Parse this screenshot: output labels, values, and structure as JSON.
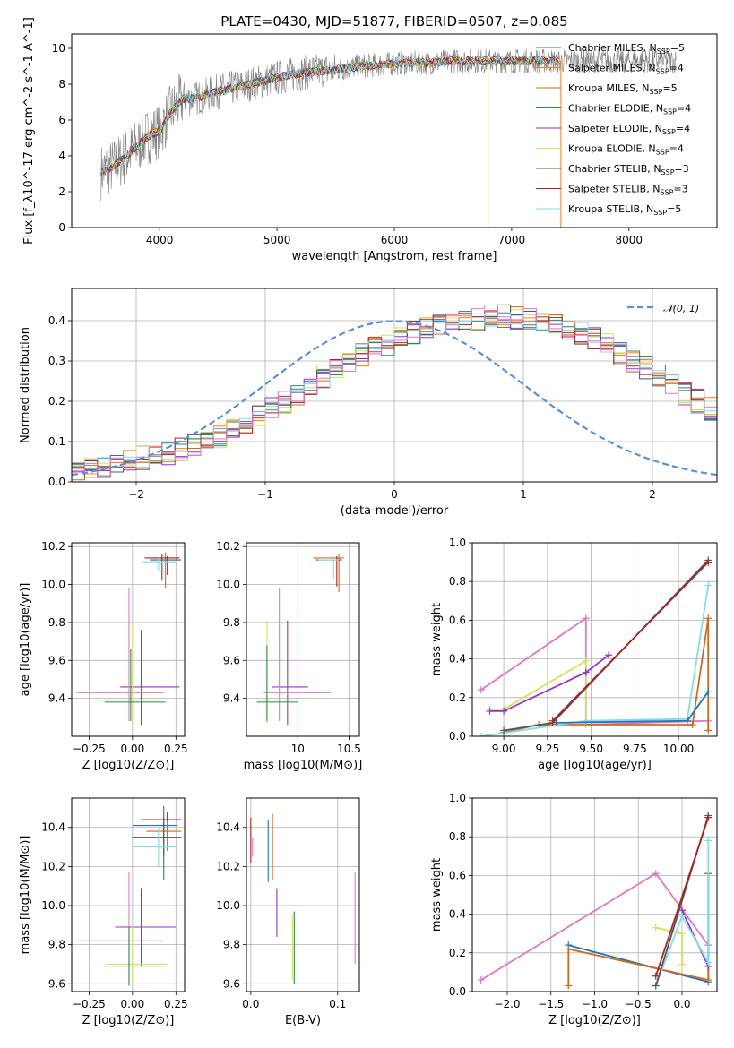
{
  "figure_title": "PLATE=0430, MJD=51877, FIBERID=0507, z=0.085",
  "chart_data": [
    {
      "id": "spectrum",
      "type": "line",
      "xlabel": "wavelength [Angstrom, rest frame]",
      "ylabel": "Flux [f_λ10^-17 erg cm^-2 s^-1 A^-1]",
      "xlim": [
        3250,
        8750
      ],
      "ylim": [
        0,
        10.8
      ],
      "xticks": [
        4000,
        5000,
        6000,
        7000,
        8000
      ],
      "yticks": [
        0,
        2,
        4,
        6,
        8,
        10
      ],
      "grid": false,
      "legend_position": "top-right",
      "data_color": "#808080",
      "model_continuum": {
        "x": [
          3500,
          3600,
          3700,
          3800,
          3900,
          4000,
          4100,
          4200,
          4300,
          4500,
          4700,
          4900,
          5100,
          5300,
          5500,
          5700,
          5900,
          6100,
          6300,
          6500,
          6700,
          6900,
          7100,
          7300,
          7400
        ],
        "y": [
          3.1,
          3.4,
          3.9,
          4.5,
          5.1,
          5.4,
          6.5,
          7.2,
          7.2,
          7.6,
          7.9,
          8.2,
          8.5,
          8.7,
          8.8,
          9.0,
          9.1,
          9.2,
          9.2,
          9.3,
          9.3,
          9.3,
          9.3,
          9.3,
          9.3
        ]
      },
      "series": [
        {
          "name": "Chabrier MILES, N_SSP=5",
          "color": "#1f77b4"
        },
        {
          "name": "Salpeter MILES, N_SSP=4",
          "color": "#ff7f0e"
        },
        {
          "name": "Kroupa MILES, N_SSP=5",
          "color": "#d2691e"
        },
        {
          "name": "Chabrier ELODIE, N_SSP=4",
          "color": "#2e8b57"
        },
        {
          "name": "Salpeter ELODIE, N_SSP=4",
          "color": "#9932cc"
        },
        {
          "name": "Kroupa ELODIE, N_SSP=4",
          "color": "#d4e157"
        },
        {
          "name": "Chabrier STELIB, N_SSP=3",
          "color": "#555555"
        },
        {
          "name": "Salpeter STELIB, N_SSP=3",
          "color": "#b22222"
        },
        {
          "name": "Kroupa STELIB, N_SSP=5",
          "color": "#80deea"
        }
      ]
    },
    {
      "id": "residual-histogram",
      "type": "line",
      "xlabel": "(data-model)/error",
      "ylabel": "Normed distribution",
      "xlim": [
        -2.5,
        2.5
      ],
      "ylim": [
        0,
        0.48
      ],
      "xticks": [
        -2,
        -1,
        0,
        1,
        2
      ],
      "yticks": [
        0.0,
        0.1,
        0.2,
        0.3,
        0.4
      ],
      "grid": true,
      "legend_position": "top-right",
      "legend": "𝒩(0, 1)",
      "gaussian_color": "#5b8fd6",
      "bin_width": 0.1,
      "bin_start": -2.5,
      "base_values": [
        0.03,
        0.035,
        0.04,
        0.045,
        0.05,
        0.06,
        0.065,
        0.07,
        0.08,
        0.09,
        0.1,
        0.11,
        0.125,
        0.14,
        0.16,
        0.18,
        0.2,
        0.22,
        0.24,
        0.26,
        0.28,
        0.3,
        0.315,
        0.33,
        0.34,
        0.355,
        0.37,
        0.38,
        0.39,
        0.395,
        0.4,
        0.405,
        0.41,
        0.41,
        0.405,
        0.4,
        0.395,
        0.39,
        0.38,
        0.37,
        0.36,
        0.34,
        0.32,
        0.3,
        0.28,
        0.26,
        0.24,
        0.22,
        0.2,
        0.18,
        0.16,
        0.14,
        0.125,
        0.11,
        0.1,
        0.09,
        0.08,
        0.07,
        0.06,
        0.05,
        0.045,
        0.04,
        0.035,
        0.03,
        0.03,
        0.028,
        0.026,
        0.024,
        0.022,
        0.02,
        0.02
      ],
      "series_colors": [
        "#1f77b4",
        "#ff7f0e",
        "#d2691e",
        "#2e8b57",
        "#9932cc",
        "#d4e157",
        "#555555",
        "#b22222",
        "#80deea",
        "#e377c2"
      ]
    },
    {
      "id": "age-vs-Z",
      "type": "scatter",
      "xlabel": "Z [log10(Z/Z⊙)]",
      "ylabel": "age [log10(age/yr)]",
      "xlim": [
        -0.35,
        0.3
      ],
      "ylim": [
        9.2,
        10.22
      ],
      "xticks": [
        -0.25,
        0.0,
        0.25
      ],
      "xtick_labels": [
        "−0.25",
        "0.00",
        "0.25"
      ],
      "yticks": [
        9.4,
        9.6,
        9.8,
        10.0,
        10.2
      ],
      "grid": true,
      "errorbars": [
        {
          "x": 0.19,
          "y": 10.14,
          "xerr": [
            0.08,
            0.08
          ],
          "yerr": [
            0.16,
            0.03
          ],
          "color": "#d2691e"
        },
        {
          "x": 0.17,
          "y": 10.14,
          "xerr": [
            0.1,
            0.1
          ],
          "yerr": [
            0.12,
            0.02
          ],
          "color": "#b22222"
        },
        {
          "x": 0.2,
          "y": 10.13,
          "xerr": [
            0.1,
            0.08
          ],
          "yerr": [
            0.08,
            0.02
          ],
          "color": "#555555"
        },
        {
          "x": 0.15,
          "y": 10.12,
          "xerr": [
            0.09,
            0.1
          ],
          "yerr": [
            0.05,
            0.02
          ],
          "color": "#80deea"
        },
        {
          "x": 0.05,
          "y": 9.46,
          "xerr": [
            0.12,
            0.22
          ],
          "yerr": [
            0.2,
            0.3
          ],
          "color": "#9932cc"
        },
        {
          "x": -0.02,
          "y": 9.43,
          "xerr": [
            0.3,
            0.2
          ],
          "yerr": [
            0.15,
            0.55
          ],
          "color": "#e377c2"
        },
        {
          "x": 0.0,
          "y": 9.39,
          "xerr": [
            0.2,
            0.15
          ],
          "yerr": [
            0.12,
            0.4
          ],
          "color": "#d4e157"
        },
        {
          "x": -0.01,
          "y": 9.38,
          "xerr": [
            0.15,
            0.2
          ],
          "yerr": [
            0.1,
            0.28
          ],
          "color": "#2e8b57"
        }
      ]
    },
    {
      "id": "age-vs-mass",
      "type": "scatter",
      "xlabel": "mass [log10(M/M⊙)]",
      "ylabel": "",
      "xlim": [
        9.5,
        10.6
      ],
      "ylim": [
        9.2,
        10.22
      ],
      "xticks": [
        10.0,
        10.5
      ],
      "yticks": [
        9.4,
        9.6,
        9.8,
        10.0,
        10.2
      ],
      "grid": true,
      "errorbars": [
        {
          "x": 10.4,
          "y": 10.14,
          "xerr": [
            0.25,
            0.05
          ],
          "yerr": [
            0.18,
            0.02
          ],
          "color": "#d2691e"
        },
        {
          "x": 10.38,
          "y": 10.13,
          "xerr": [
            0.2,
            0.05
          ],
          "yerr": [
            0.14,
            0.02
          ],
          "color": "#b22222"
        },
        {
          "x": 10.35,
          "y": 10.13,
          "xerr": [
            0.15,
            0.05
          ],
          "yerr": [
            0.1,
            0.02
          ],
          "color": "#80deea"
        },
        {
          "x": 9.9,
          "y": 9.46,
          "xerr": [
            0.15,
            0.2
          ],
          "yerr": [
            0.2,
            0.35
          ],
          "color": "#9932cc"
        },
        {
          "x": 9.82,
          "y": 9.43,
          "xerr": [
            0.15,
            0.5
          ],
          "yerr": [
            0.15,
            0.55
          ],
          "color": "#e377c2"
        },
        {
          "x": 9.7,
          "y": 9.39,
          "xerr": [
            0.1,
            0.25
          ],
          "yerr": [
            0.12,
            0.42
          ],
          "color": "#d4e157"
        },
        {
          "x": 9.7,
          "y": 9.38,
          "xerr": [
            0.1,
            0.3
          ],
          "yerr": [
            0.1,
            0.3
          ],
          "color": "#2e8b57"
        }
      ]
    },
    {
      "id": "massweight-vs-age",
      "type": "line",
      "xlabel": "age [log10(age/yr)]",
      "ylabel": "mass weight",
      "xlim": [
        8.82,
        10.22
      ],
      "ylim": [
        0,
        1.0
      ],
      "xticks": [
        9.0,
        9.25,
        9.5,
        9.75,
        10.0
      ],
      "xtick_labels": [
        "9.00",
        "9.25",
        "9.50",
        "9.75",
        "10.00"
      ],
      "yticks": [
        0.0,
        0.2,
        0.4,
        0.6,
        0.8,
        1.0
      ],
      "grid": true,
      "series": [
        {
          "color": "#e377c2",
          "x": [
            8.87,
            9.47,
            9.47,
            10.17
          ],
          "y": [
            0.24,
            0.61,
            0.06,
            0.08
          ]
        },
        {
          "color": "#d4e157",
          "x": [
            8.92,
            9.0,
            9.47,
            9.47
          ],
          "y": [
            0.14,
            0.14,
            0.39,
            0.06
          ]
        },
        {
          "color": "#9932cc",
          "x": [
            8.92,
            9.0,
            9.47,
            9.6
          ],
          "y": [
            0.13,
            0.13,
            0.33,
            0.42
          ]
        },
        {
          "color": "#d2691e",
          "x": [
            9.0,
            9.2,
            10.08,
            10.17,
            10.17
          ],
          "y": [
            0.02,
            0.06,
            0.06,
            0.61,
            0.03
          ]
        },
        {
          "color": "#80deea",
          "x": [
            8.87,
            9.47,
            10.05,
            10.17
          ],
          "y": [
            0.0,
            0.08,
            0.09,
            0.78
          ]
        },
        {
          "color": "#1f77b4",
          "x": [
            9.3,
            10.05,
            10.17
          ],
          "y": [
            0.07,
            0.08,
            0.23
          ]
        },
        {
          "color": "#555555",
          "x": [
            9.0,
            9.28,
            10.17
          ],
          "y": [
            0.03,
            0.07,
            0.91
          ]
        },
        {
          "color": "#b22222",
          "x": [
            9.28,
            10.17
          ],
          "y": [
            0.08,
            0.9
          ]
        }
      ]
    },
    {
      "id": "mass-vs-Z",
      "type": "scatter",
      "xlabel": "Z [log10(Z/Z⊙)]",
      "ylabel": "mass [log10(M/M⊙)]",
      "xlim": [
        -0.35,
        0.3
      ],
      "ylim": [
        9.56,
        10.55
      ],
      "xticks": [
        -0.25,
        0.0,
        0.25
      ],
      "xtick_labels": [
        "−0.25",
        "0.00",
        "0.25"
      ],
      "yticks": [
        9.6,
        9.8,
        10.0,
        10.2,
        10.4
      ],
      "grid": true,
      "errorbars": [
        {
          "x": 0.2,
          "y": 10.44,
          "xerr": [
            0.15,
            0.08
          ],
          "yerr": [
            0.08,
            0.04
          ],
          "color": "#b22222"
        },
        {
          "x": 0.18,
          "y": 10.41,
          "xerr": [
            0.18,
            0.08
          ],
          "yerr": [
            0.28,
            0.1
          ],
          "color": "#1f77b4"
        },
        {
          "x": 0.2,
          "y": 10.38,
          "xerr": [
            0.12,
            0.08
          ],
          "yerr": [
            0.1,
            0.05
          ],
          "color": "#d2691e"
        },
        {
          "x": 0.18,
          "y": 10.35,
          "xerr": [
            0.18,
            0.1
          ],
          "yerr": [
            0.1,
            0.1
          ],
          "color": "#555555"
        },
        {
          "x": 0.15,
          "y": 10.3,
          "xerr": [
            0.15,
            0.1
          ],
          "yerr": [
            0.1,
            0.1
          ],
          "color": "#80deea"
        },
        {
          "x": 0.05,
          "y": 9.89,
          "xerr": [
            0.15,
            0.2
          ],
          "yerr": [
            0.2,
            0.2
          ],
          "color": "#9932cc"
        },
        {
          "x": -0.02,
          "y": 9.82,
          "xerr": [
            0.3,
            0.2
          ],
          "yerr": [
            0.2,
            0.35
          ],
          "color": "#e377c2"
        },
        {
          "x": 0.0,
          "y": 9.7,
          "xerr": [
            0.15,
            0.2
          ],
          "yerr": [
            0.1,
            0.2
          ],
          "color": "#d4e157"
        },
        {
          "x": -0.02,
          "y": 9.69,
          "xerr": [
            0.15,
            0.2
          ],
          "yerr": [
            0.1,
            0.2
          ],
          "color": "#2e8b57"
        }
      ]
    },
    {
      "id": "mass-vs-EBV",
      "type": "scatter",
      "xlabel": "E(B-V)",
      "ylabel": "",
      "xlim": [
        -0.005,
        0.125
      ],
      "ylim": [
        9.56,
        10.55
      ],
      "xticks": [
        0.0,
        0.1
      ],
      "xtick_labels": [
        "0.0",
        "0.1"
      ],
      "yticks": [
        9.6,
        9.8,
        10.0,
        10.2,
        10.4
      ],
      "grid": true,
      "errorbars": [
        {
          "x": 0.0,
          "y": 10.3,
          "yerr": [
            0.08,
            0.15
          ],
          "color": "#b22222"
        },
        {
          "x": 0.002,
          "y": 10.3,
          "yerr": [
            0.05,
            0.05
          ],
          "color": "#e377c2"
        },
        {
          "x": 0.02,
          "y": 10.26,
          "yerr": [
            0.14,
            0.18
          ],
          "color": "#1f77b4"
        },
        {
          "x": 0.025,
          "y": 10.3,
          "yerr": [
            0.17,
            0.17
          ],
          "color": "#d2691e"
        },
        {
          "x": 0.03,
          "y": 9.96,
          "yerr": [
            0.12,
            0.13
          ],
          "color": "#9932cc"
        },
        {
          "x": 0.048,
          "y": 9.8,
          "yerr": [
            0.18,
            0.15
          ],
          "color": "#d4e157"
        },
        {
          "x": 0.05,
          "y": 9.8,
          "yerr": [
            0.2,
            0.17
          ],
          "color": "#2e8b57"
        },
        {
          "x": 0.12,
          "y": 9.9,
          "yerr": [
            0.2,
            0.27
          ],
          "color": "#e377c2"
        }
      ]
    },
    {
      "id": "massweight-vs-Z",
      "type": "line",
      "xlabel": "Z [log10(Z/Z⊙)]",
      "ylabel": "mass weight",
      "xlim": [
        -2.4,
        0.4
      ],
      "ylim": [
        0,
        1.0
      ],
      "xticks": [
        -2.0,
        -1.5,
        -1.0,
        -0.5,
        0.0
      ],
      "xtick_labels": [
        "−2.0",
        "−1.5",
        "−1.0",
        "−0.5",
        "0.0"
      ],
      "yticks": [
        0.0,
        0.2,
        0.4,
        0.6,
        0.8,
        1.0
      ],
      "grid": true,
      "series": [
        {
          "color": "#e377c2",
          "x": [
            -2.3,
            -0.3,
            0.3
          ],
          "y": [
            0.06,
            0.61,
            0.24
          ]
        },
        {
          "color": "#1f77b4",
          "x": [
            -1.3,
            0.3,
            0.3
          ],
          "y": [
            0.24,
            0.05,
            0.61
          ]
        },
        {
          "color": "#d2691e",
          "x": [
            -1.3,
            -1.3,
            0.3,
            0.3
          ],
          "y": [
            0.03,
            0.22,
            0.06,
            0.61
          ]
        },
        {
          "color": "#d4e157",
          "x": [
            -0.3,
            0.0,
            0.0
          ],
          "y": [
            0.33,
            0.3,
            0.14
          ]
        },
        {
          "color": "#9932cc",
          "x": [
            0.0,
            0.3
          ],
          "y": [
            0.42,
            0.13
          ]
        },
        {
          "color": "#80deea",
          "x": [
            -0.3,
            0.0,
            0.3,
            0.3
          ],
          "y": [
            0.03,
            0.39,
            0.15,
            0.78
          ]
        },
        {
          "color": "#555555",
          "x": [
            -0.3,
            0.3
          ],
          "y": [
            0.03,
            0.91
          ]
        },
        {
          "color": "#b22222",
          "x": [
            -0.3,
            0.3
          ],
          "y": [
            0.08,
            0.9
          ]
        }
      ]
    }
  ]
}
